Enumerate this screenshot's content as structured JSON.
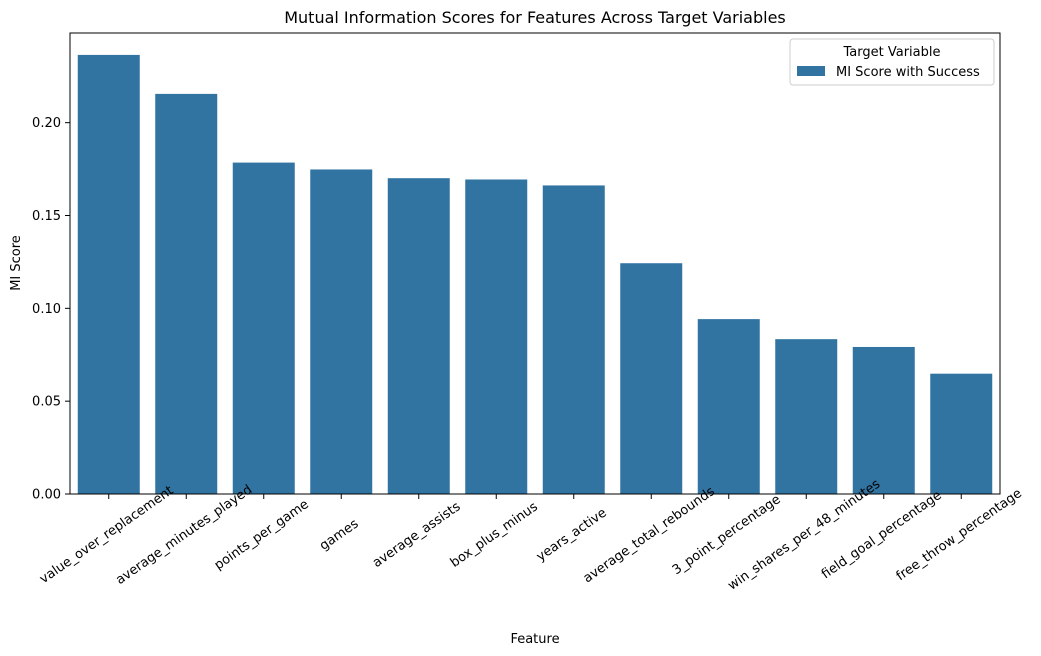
{
  "chart_data": {
    "type": "bar",
    "title": "Mutual Information Scores for Features Across Target Variables",
    "xlabel": "Feature",
    "ylabel": "MI Score",
    "categories": [
      "value_over_replacement",
      "average_minutes_played",
      "points_per_game",
      "games",
      "average_assists",
      "box_plus_minus",
      "years_active",
      "average_total_rebounds",
      "3_point_percentage",
      "win_shares_per_48_minutes",
      "field_goal_percentage",
      "free_throw_percentage"
    ],
    "series": [
      {
        "name": "MI Score with Success",
        "color": "#3274a1",
        "values": [
          0.2365,
          0.2155,
          0.1785,
          0.1748,
          0.1701,
          0.1694,
          0.1662,
          0.1243,
          0.0942,
          0.0834,
          0.0792,
          0.0648
        ]
      }
    ],
    "yticks": [
      0.0,
      0.05,
      0.1,
      0.15,
      0.2
    ],
    "ytick_labels": [
      "0.00",
      "0.05",
      "0.10",
      "0.15",
      "0.20"
    ],
    "ylim": [
      0,
      0.2483
    ],
    "x_tick_rotation_deg": 35,
    "grid": false,
    "legend": {
      "title": "Target Variable",
      "placement": "top-right"
    }
  }
}
